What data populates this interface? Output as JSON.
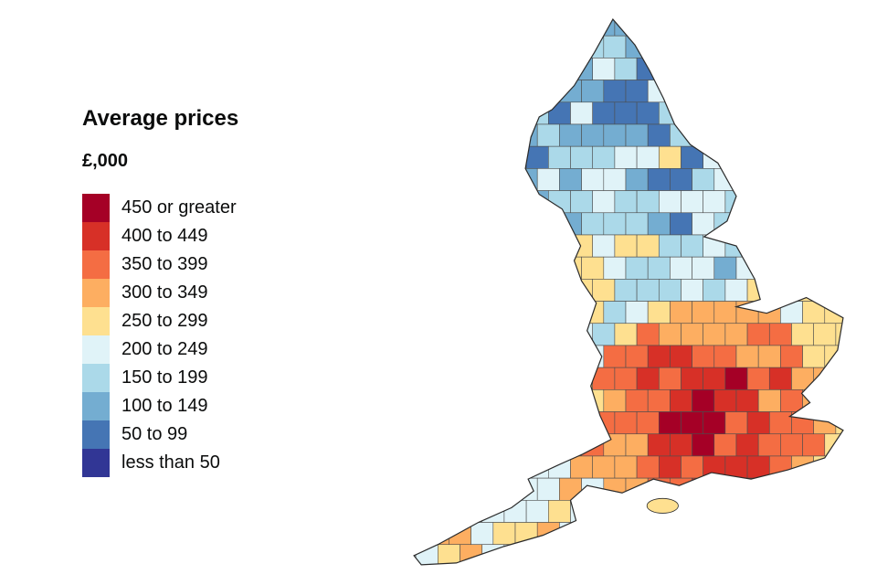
{
  "legend": {
    "title": "Average prices",
    "unit": "£,000",
    "items": [
      {
        "label": "450 or greater",
        "color": "#a50026"
      },
      {
        "label": "400 to 449",
        "color": "#d73027"
      },
      {
        "label": "350 to 399",
        "color": "#f46d43"
      },
      {
        "label": "300 to 349",
        "color": "#fdae61"
      },
      {
        "label": "250 to 299",
        "color": "#fee090"
      },
      {
        "label": "200 to 249",
        "color": "#e0f3f8"
      },
      {
        "label": "150 to 199",
        "color": "#abd9e9"
      },
      {
        "label": "100 to 149",
        "color": "#74add1"
      },
      {
        "label": "50 to 99",
        "color": "#4575b4"
      },
      {
        "label": "less than 50",
        "color": "#313695"
      }
    ]
  },
  "map": {
    "region_name": "England",
    "boundary_color": "#4d4d4d",
    "outline_color": "#2b2b2b"
  },
  "chart_data": {
    "type": "heatmap",
    "subtype": "choropleth",
    "title": "Average prices",
    "unit": "£,000",
    "legend_position": "left",
    "classes": [
      {
        "label": "450 or greater",
        "color": "#a50026"
      },
      {
        "label": "400 to 449",
        "color": "#d73027"
      },
      {
        "label": "350 to 399",
        "color": "#f46d43"
      },
      {
        "label": "300 to 349",
        "color": "#fdae61"
      },
      {
        "label": "250 to 299",
        "color": "#fee090"
      },
      {
        "label": "200 to 249",
        "color": "#e0f3f8"
      },
      {
        "label": "150 to 199",
        "color": "#abd9e9"
      },
      {
        "label": "100 to 149",
        "color": "#74add1"
      },
      {
        "label": "50 to 99",
        "color": "#4575b4"
      },
      {
        "label": "less than 50",
        "color": "#313695"
      }
    ]
  }
}
